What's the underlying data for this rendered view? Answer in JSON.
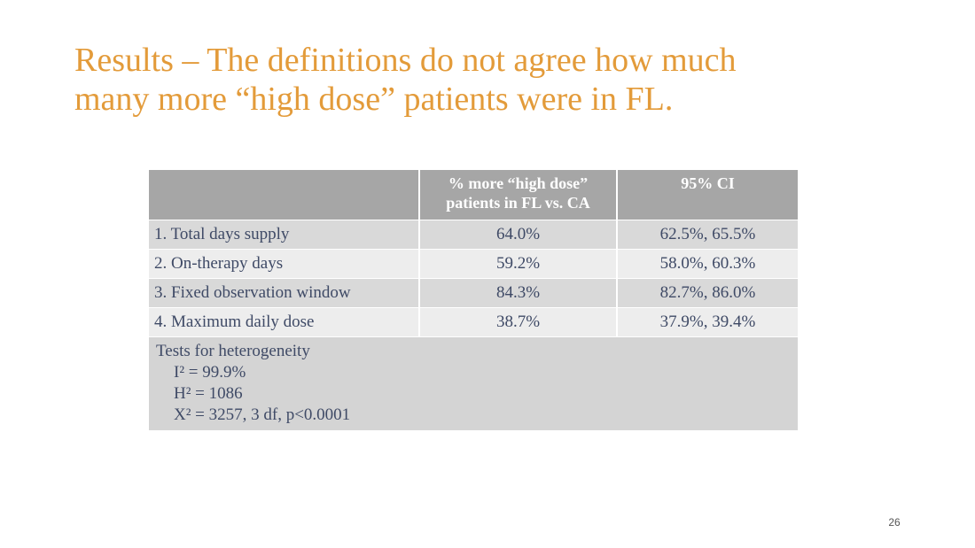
{
  "title": {
    "line1": "Results – The definitions do not agree how much",
    "line2": "many more “high dose” patients were in FL."
  },
  "table": {
    "headers": [
      "",
      "% more “high dose” patients in FL vs. CA",
      "95% CI"
    ],
    "rows": [
      {
        "label": "1. Total days supply",
        "pct": "64.0%",
        "ci": "62.5%, 65.5%"
      },
      {
        "label": "2. On-therapy days",
        "pct": "59.2%",
        "ci": "58.0%, 60.3%"
      },
      {
        "label": "3. Fixed observation window",
        "pct": "84.3%",
        "ci": "82.7%, 86.0%"
      },
      {
        "label": "4. Maximum daily dose",
        "pct": "38.7%",
        "ci": "37.9%, 39.4%"
      }
    ],
    "heterogeneity": {
      "heading": "Tests for heterogeneity",
      "i2": "I² = 99.9%",
      "h2": "H² = 1086",
      "x2": "X² = 3257, 3 df, p<0.0001"
    }
  },
  "page_number": "26"
}
